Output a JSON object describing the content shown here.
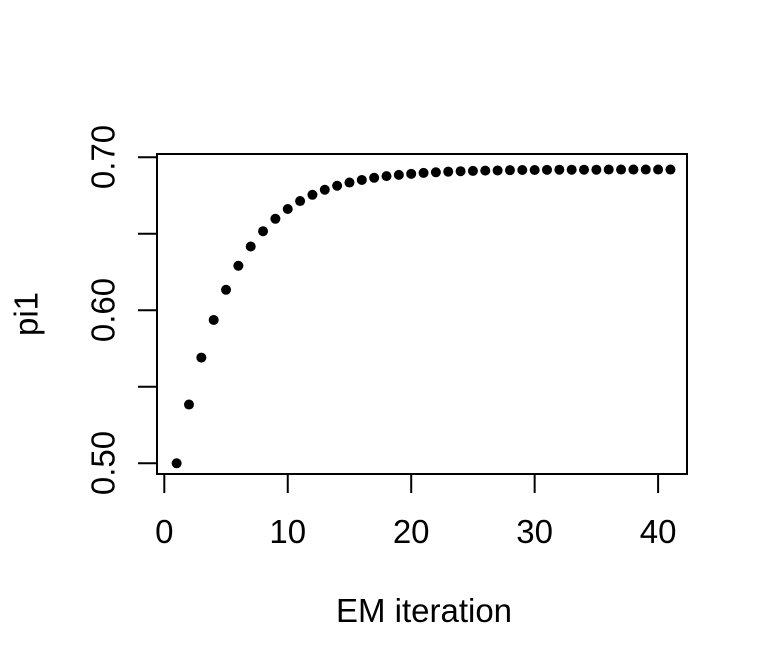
{
  "figure": {
    "background_color": "#ffffff",
    "foreground_color": "#000000"
  },
  "chart_data": {
    "type": "scatter",
    "title": "",
    "xlabel": "EM iteration",
    "ylabel": "pi1",
    "marker": "filled-circle",
    "color": "#000000",
    "grid": false,
    "legend": null,
    "xlim": [
      -0.6,
      42.6
    ],
    "ylim": [
      0.4925,
      0.7025
    ],
    "x_ticks": [
      0,
      10,
      20,
      30,
      40
    ],
    "x_tick_labels": [
      "0",
      "10",
      "20",
      "30",
      "40"
    ],
    "y_ticks": [
      0.5,
      0.55,
      0.6,
      0.65,
      0.7
    ],
    "y_tick_labels": [
      {
        "value": 0.5,
        "label": "0.50"
      },
      {
        "value": 0.6,
        "label": "0.60"
      },
      {
        "value": 0.7,
        "label": "0.70"
      }
    ],
    "x": [
      1,
      2,
      3,
      4,
      5,
      6,
      7,
      8,
      9,
      10,
      11,
      12,
      13,
      14,
      15,
      16,
      17,
      18,
      19,
      20,
      21,
      22,
      23,
      24,
      25,
      26,
      27,
      28,
      29,
      30,
      31,
      32,
      33,
      34,
      35,
      36,
      37,
      38,
      39,
      40,
      41
    ],
    "y": [
      0.5,
      0.5384,
      0.5691,
      0.5937,
      0.6134,
      0.6291,
      0.6417,
      0.6517,
      0.6598,
      0.6662,
      0.6714,
      0.6755,
      0.6788,
      0.6814,
      0.6835,
      0.6852,
      0.6866,
      0.6877,
      0.6885,
      0.6892,
      0.6898,
      0.6902,
      0.6906,
      0.6909,
      0.6911,
      0.6913,
      0.6914,
      0.6916,
      0.6917,
      0.6917,
      0.6918,
      0.6919,
      0.6919,
      0.6919,
      0.6919,
      0.692,
      0.692,
      0.692,
      0.692,
      0.692,
      0.692
    ]
  }
}
